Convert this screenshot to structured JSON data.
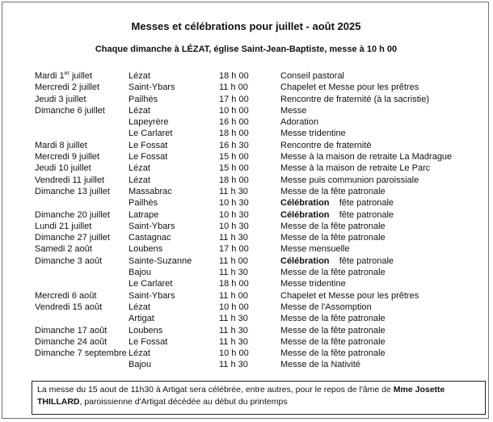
{
  "header": {
    "title": "Messes et célébrations pour juillet - août 2025",
    "subtitle": "Chaque dimanche à LÉZAT, église Saint-Jean-Baptiste, messe à 10 h 00"
  },
  "schedule": [
    {
      "date": "Mardi 1er juillet",
      "place": "Lézat",
      "time": "18 h 00",
      "event": "Conseil pastoral"
    },
    {
      "date": "Mercredi 2 juillet",
      "place": "Saint-Ybars",
      "time": "11 h 00",
      "event": "Chapelet et Messe pour les prêtres"
    },
    {
      "date": "Jeudi 3 juillet",
      "place": "Pailhès",
      "time": "17 h 00",
      "event": "Rencontre de fraternité (à la sacristie)"
    },
    {
      "date": "Dimanche 6 juillet",
      "place": "Lézat",
      "time": "10 h 00",
      "event": "Messe"
    },
    {
      "date": "",
      "place": "Lapeyrère",
      "time": "16 h 00",
      "event": "Adoration"
    },
    {
      "date": "",
      "place": "Le Carlaret",
      "time": "18 h 00",
      "event": "Messe tridentine"
    },
    {
      "date": "Mardi 8 juillet",
      "place": "Le Fossat",
      "time": "16 h 30",
      "event": "Rencontre de fraternité"
    },
    {
      "date": "Mercredi 9 juillet",
      "place": "Le Fossat",
      "time": "15 h 00",
      "event": "Messe à la maison de retraite La Madrague"
    },
    {
      "date": "Jeudi 10 juillet",
      "place": "Lézat",
      "time": "15 h 00",
      "event": "Messe à la maison de retraite Le Parc"
    },
    {
      "date": "Vendredi 11 juillet",
      "place": "Lézat",
      "time": "18 h 00",
      "event": "Messe puis communion paroissiale"
    },
    {
      "date": "Dimanche 13 juillet",
      "place": "Massabrac",
      "time": "11 h 30",
      "event": "Messe de la fête patronale"
    },
    {
      "date": "",
      "place": "Pailhès",
      "time": "10 h 30",
      "event_bold": "Célébration",
      "event": "fête patronale"
    },
    {
      "date": "Dimanche 20 juillet",
      "place": "Latrape",
      "time": "10 h 30",
      "event_bold": "Célébration",
      "event": "fête patronale"
    },
    {
      "date": "Lundi 21 juillet",
      "place": "Saint-Ybars",
      "time": "10 h 30",
      "event": "Messe de la fête patronale"
    },
    {
      "date": "Dimanche 27 juillet",
      "place": "Castagnac",
      "time": "11 h 30",
      "event": "Messe de la fête patronale"
    },
    {
      "date": "Samedi 2 août",
      "place": "Loubens",
      "time": "17 h 00",
      "event": "Messe mensuelle"
    },
    {
      "date": "Dimanche 3 août",
      "place": "Sainte-Suzanne",
      "time": "11 h 00",
      "event_bold": "Célébration",
      "event": "fête patronale"
    },
    {
      "date": "",
      "place": "Bajou",
      "time": "11 h 30",
      "event": "Messe de la fête patronale"
    },
    {
      "date": "",
      "place": "Le Carlaret",
      "time": "18 h 00",
      "event": "Messe tridentine"
    },
    {
      "date": "Mercredi 6 août",
      "place": "Saint-Ybars",
      "time": "11 h 00",
      "event": "Chapelet et Messe pour les prêtres"
    },
    {
      "date": "Vendredi 15 août",
      "place": "Lézat",
      "time": "10 h 00",
      "event": "Messe de l'Assomption"
    },
    {
      "date": "",
      "place": "Artigat",
      "time": "11 h 30",
      "event": "Messe de la fête patronale"
    },
    {
      "date": "Dimanche 17 août",
      "place": "Loubens",
      "time": "11 h 30",
      "event": "Messe de la fête patronale"
    },
    {
      "date": "Dimanche 24 août",
      "place": "Le Fossat",
      "time": "11 h 30",
      "event": "Messe de la fête patronale"
    },
    {
      "date": "Dimanche 7 septembre",
      "place": "Lézat",
      "time": "10 h 00",
      "event": "Messe de la fête patronale"
    },
    {
      "date": "",
      "place": "Bajou",
      "time": "11 h 30",
      "event": "Messe de la Nativité"
    }
  ],
  "note": {
    "part1": "La messe du 15 aout de 11h30 à Artigat sera célébrée, entre autres, pour le repos de l'âme de ",
    "name": "Mme Josette THILLARD",
    "part2": ", paroissienne d'Artigat décédée au début du printemps"
  }
}
